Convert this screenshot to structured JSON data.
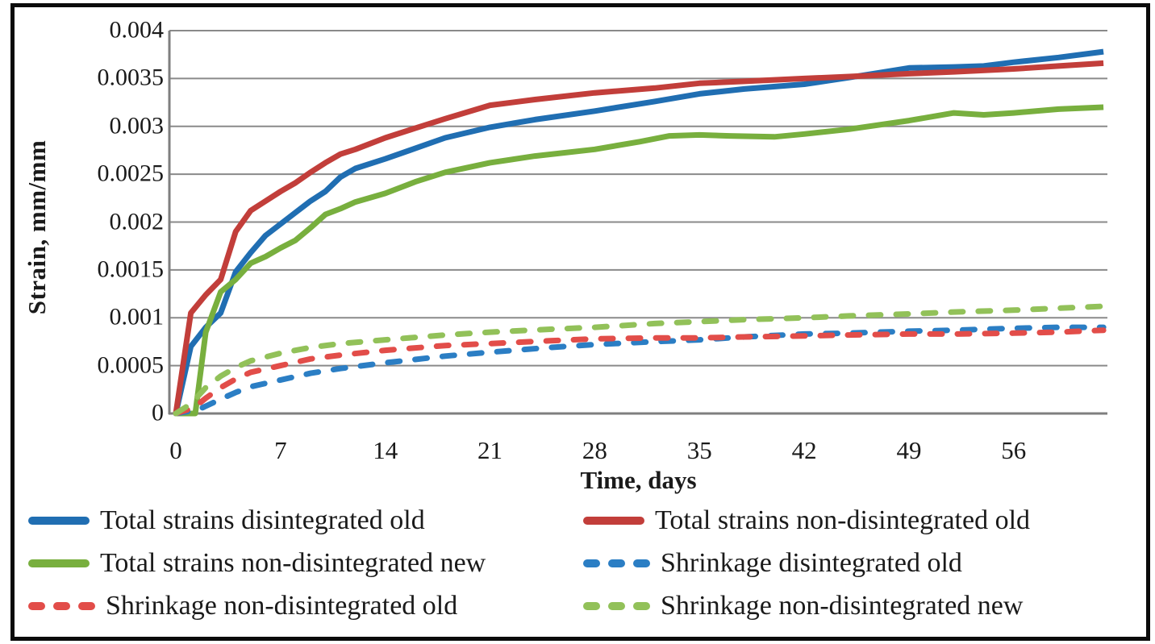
{
  "figure": {
    "background": "#ffffff",
    "border_color": "#0b0b0b",
    "grid_color": "#8a8a8a",
    "axis_color": "#7f7f7f"
  },
  "chart_data": {
    "type": "line",
    "title": "",
    "xlabel": "Time, days",
    "ylabel": "Strain, mm/mm",
    "xlim": [
      0,
      62.3
    ],
    "ylim": [
      0,
      0.004
    ],
    "grid": "horizontal",
    "legend_position": "bottom",
    "x_ticks": [
      {
        "v": 0,
        "label": "0"
      },
      {
        "v": 7,
        "label": "7"
      },
      {
        "v": 14,
        "label": "14"
      },
      {
        "v": 21,
        "label": "21"
      },
      {
        "v": 28,
        "label": "28"
      },
      {
        "v": 35,
        "label": "35"
      },
      {
        "v": 42,
        "label": "42"
      },
      {
        "v": 49,
        "label": "49"
      },
      {
        "v": 56,
        "label": "56"
      }
    ],
    "y_ticks": [
      {
        "v": 0,
        "label": "0"
      },
      {
        "v": 0.0005,
        "label": "0.0005"
      },
      {
        "v": 0.001,
        "label": "0.001"
      },
      {
        "v": 0.0015,
        "label": "0.0015"
      },
      {
        "v": 0.002,
        "label": "0.002"
      },
      {
        "v": 0.0025,
        "label": "0.0025"
      },
      {
        "v": 0.003,
        "label": "0.003"
      },
      {
        "v": 0.0035,
        "label": "0.0035"
      },
      {
        "v": 0.004,
        "label": "0.004"
      }
    ],
    "series": [
      {
        "name": "Total strains disintegrated old",
        "color": "#206EB2",
        "style": "solid",
        "points": [
          [
            0,
            0
          ],
          [
            1,
            0.0007
          ],
          [
            2,
            0.0009
          ],
          [
            3,
            0.00105
          ],
          [
            4,
            0.00148
          ],
          [
            5,
            0.00168
          ],
          [
            6,
            0.00186
          ],
          [
            7,
            0.00198
          ],
          [
            8,
            0.0021
          ],
          [
            9,
            0.00222
          ],
          [
            10,
            0.00232
          ],
          [
            11,
            0.00247
          ],
          [
            12,
            0.00256
          ],
          [
            14,
            0.00266
          ],
          [
            16,
            0.00277
          ],
          [
            18,
            0.00288
          ],
          [
            21,
            0.00299
          ],
          [
            24,
            0.00307
          ],
          [
            28,
            0.00316
          ],
          [
            32,
            0.00326
          ],
          [
            35,
            0.00334
          ],
          [
            38,
            0.00339
          ],
          [
            42,
            0.00344
          ],
          [
            45,
            0.00351
          ],
          [
            47,
            0.00356
          ],
          [
            49,
            0.00361
          ],
          [
            52,
            0.00362
          ],
          [
            54,
            0.00363
          ],
          [
            56,
            0.00367
          ],
          [
            59,
            0.00372
          ],
          [
            62,
            0.00378
          ]
        ]
      },
      {
        "name": "Total strains non-disintegrated old",
        "color": "#C23E3A",
        "style": "solid",
        "points": [
          [
            0,
            0
          ],
          [
            1,
            0.00105
          ],
          [
            2,
            0.00124
          ],
          [
            3,
            0.0014
          ],
          [
            4,
            0.0019
          ],
          [
            5,
            0.00212
          ],
          [
            6,
            0.00222
          ],
          [
            7,
            0.00232
          ],
          [
            8,
            0.00241
          ],
          [
            9,
            0.00252
          ],
          [
            10,
            0.00262
          ],
          [
            11,
            0.00271
          ],
          [
            12,
            0.00276
          ],
          [
            14,
            0.00288
          ],
          [
            16,
            0.00298
          ],
          [
            18,
            0.00308
          ],
          [
            21,
            0.00322
          ],
          [
            24,
            0.00328
          ],
          [
            28,
            0.00335
          ],
          [
            32,
            0.0034
          ],
          [
            35,
            0.00345
          ],
          [
            38,
            0.00347
          ],
          [
            42,
            0.0035
          ],
          [
            45,
            0.00352
          ],
          [
            49,
            0.00355
          ],
          [
            52,
            0.00357
          ],
          [
            56,
            0.0036
          ],
          [
            59,
            0.00363
          ],
          [
            62,
            0.00366
          ]
        ]
      },
      {
        "name": "Total strains non-disintegrated new",
        "color": "#78AF3E",
        "style": "solid",
        "points": [
          [
            0,
            0
          ],
          [
            1.3,
            0
          ],
          [
            2,
            0.00085
          ],
          [
            3,
            0.00127
          ],
          [
            4,
            0.0014
          ],
          [
            5,
            0.00157
          ],
          [
            6,
            0.00164
          ],
          [
            7,
            0.00173
          ],
          [
            8,
            0.00181
          ],
          [
            9,
            0.00194
          ],
          [
            10,
            0.00208
          ],
          [
            11,
            0.00214
          ],
          [
            12,
            0.00221
          ],
          [
            14,
            0.0023
          ],
          [
            16,
            0.00242
          ],
          [
            18,
            0.00252
          ],
          [
            21,
            0.00262
          ],
          [
            24,
            0.00269
          ],
          [
            28,
            0.00276
          ],
          [
            31,
            0.00284
          ],
          [
            33,
            0.0029
          ],
          [
            35,
            0.00291
          ],
          [
            37,
            0.0029
          ],
          [
            40,
            0.00289
          ],
          [
            42,
            0.00292
          ],
          [
            45,
            0.00297
          ],
          [
            49,
            0.00306
          ],
          [
            52,
            0.00314
          ],
          [
            54,
            0.00312
          ],
          [
            56,
            0.00314
          ],
          [
            59,
            0.00318
          ],
          [
            62,
            0.0032
          ]
        ]
      },
      {
        "name": "Shrinkage disintegrated old",
        "color": "#2B7EC4",
        "style": "dashed",
        "points": [
          [
            0,
            0
          ],
          [
            1.5,
            4e-05
          ],
          [
            3,
            0.00015
          ],
          [
            4,
            0.00022
          ],
          [
            5,
            0.00028
          ],
          [
            7,
            0.00035
          ],
          [
            9,
            0.00042
          ],
          [
            11,
            0.00047
          ],
          [
            14,
            0.00053
          ],
          [
            18,
            0.0006
          ],
          [
            21,
            0.00064
          ],
          [
            25,
            0.00069
          ],
          [
            28,
            0.00072
          ],
          [
            32,
            0.00075
          ],
          [
            35,
            0.00077
          ],
          [
            38,
            0.0008
          ],
          [
            42,
            0.00083
          ],
          [
            45,
            0.00084
          ],
          [
            49,
            0.00086
          ],
          [
            52,
            0.00087
          ],
          [
            56,
            0.00089
          ],
          [
            59,
            0.0009
          ],
          [
            62,
            0.0009
          ]
        ]
      },
      {
        "name": "Shrinkage non-disintegrated old",
        "color": "#E24D49",
        "style": "dashed",
        "points": [
          [
            0,
            0
          ],
          [
            1.2,
            6e-05
          ],
          [
            2,
            0.00016
          ],
          [
            3,
            0.00027
          ],
          [
            4,
            0.00036
          ],
          [
            5,
            0.00043
          ],
          [
            7,
            0.0005
          ],
          [
            9,
            0.00057
          ],
          [
            11,
            0.00061
          ],
          [
            14,
            0.00066
          ],
          [
            18,
            0.00071
          ],
          [
            21,
            0.00073
          ],
          [
            25,
            0.00076
          ],
          [
            28,
            0.00078
          ],
          [
            32,
            0.00079
          ],
          [
            35,
            0.00079
          ],
          [
            38,
            0.0008
          ],
          [
            42,
            0.00081
          ],
          [
            45,
            0.00082
          ],
          [
            49,
            0.00083
          ],
          [
            52,
            0.00083
          ],
          [
            56,
            0.00084
          ],
          [
            59,
            0.00085
          ],
          [
            62,
            0.00087
          ]
        ]
      },
      {
        "name": "Shrinkage non-disintegrated new",
        "color": "#92C159",
        "style": "dashed",
        "points": [
          [
            0,
            0
          ],
          [
            1,
            0.0001
          ],
          [
            2,
            0.00027
          ],
          [
            3,
            0.00039
          ],
          [
            4,
            0.00048
          ],
          [
            5,
            0.00055
          ],
          [
            7,
            0.00063
          ],
          [
            9,
            0.00069
          ],
          [
            11,
            0.00073
          ],
          [
            14,
            0.00077
          ],
          [
            18,
            0.00082
          ],
          [
            21,
            0.00085
          ],
          [
            25,
            0.00088
          ],
          [
            28,
            0.0009
          ],
          [
            32,
            0.00094
          ],
          [
            35,
            0.00096
          ],
          [
            38,
            0.00098
          ],
          [
            42,
            0.001
          ],
          [
            45,
            0.00102
          ],
          [
            49,
            0.00104
          ],
          [
            52,
            0.00106
          ],
          [
            56,
            0.00108
          ],
          [
            59,
            0.0011
          ],
          [
            62,
            0.00112
          ]
        ]
      }
    ]
  },
  "legend": {
    "items_note": "legend entries mirror chart_data.series order, laid out in 2 columns x 3 rows"
  }
}
